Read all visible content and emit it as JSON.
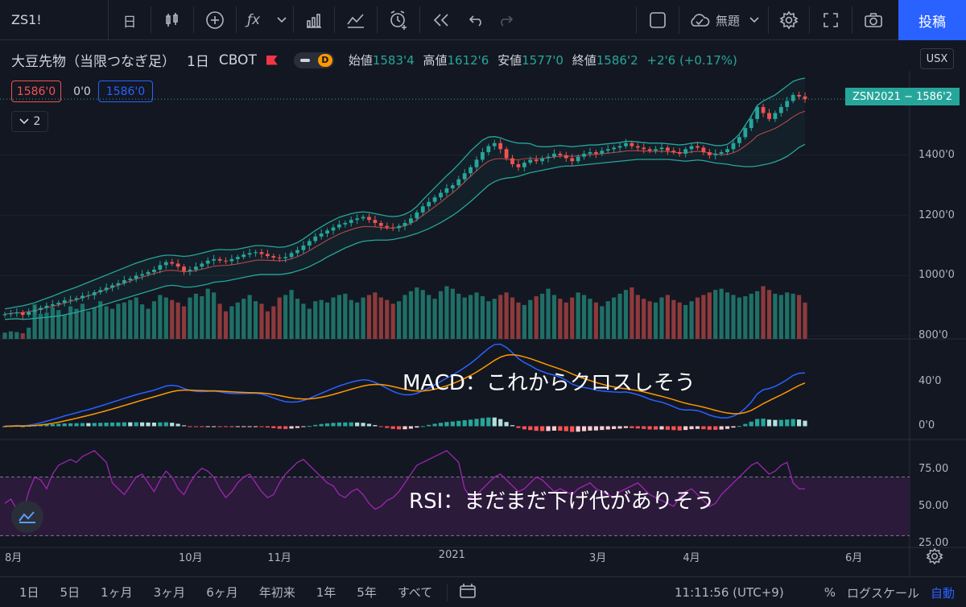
{
  "toolbar": {
    "symbol": "ZS1!",
    "interval": "日",
    "items": [
      "candle-icon",
      "plus-circle-icon",
      "function-icon",
      "chevron-down-icon",
      "bar-chart-icon",
      "compare-icon",
      "alarm-icon",
      "replay-icon",
      "undo-icon",
      "redo-icon",
      "layout-icon"
    ],
    "save_label": "無題",
    "post_label": "投稿"
  },
  "legend": {
    "title": "大豆先物（当限つなぎ足）",
    "interval": "1日",
    "exchange": "CBOT",
    "pill_letter": "D",
    "open_label": "始値",
    "open": "1583'4",
    "high_label": "高値",
    "high": "1612'6",
    "low_label": "安値",
    "low": "1577'0",
    "close_label": "終値",
    "close": "1586'2",
    "change": "+2'6 (+0.17%)"
  },
  "order": {
    "sell": "1586'0",
    "spread": "0'0",
    "buy": "1586'0"
  },
  "indicator_toggle": "2",
  "currency": "USX",
  "last_price_label": "ZSN2021 − 1586'2",
  "colors": {
    "up": "#26a69a",
    "down": "#ef5350",
    "bb": "#26a69a",
    "ma": "#ef5350",
    "macd": "#2962ff",
    "signal": "#ff9800",
    "rsi": "#9c27b0",
    "rsi_band": "#2b1a3a"
  },
  "chart_data": {
    "type": "line",
    "price_axis": [
      "1400'0",
      "1200'0",
      "1000'0",
      "800'0"
    ],
    "price_ticks": [
      1400,
      1200,
      1000,
      800
    ],
    "price_range": [
      790,
      1680
    ],
    "close": [
      872,
      875,
      878,
      870,
      880,
      886,
      893,
      900,
      905,
      910,
      918,
      920,
      925,
      933,
      935,
      945,
      952,
      960,
      968,
      975,
      985,
      990,
      1000,
      1005,
      1012,
      1020,
      1035,
      1045,
      1040,
      1030,
      1015,
      1020,
      1030,
      1040,
      1050,
      1055,
      1050,
      1048,
      1055,
      1062,
      1070,
      1075,
      1078,
      1072,
      1065,
      1060,
      1058,
      1062,
      1075,
      1085,
      1100,
      1115,
      1130,
      1140,
      1150,
      1160,
      1170,
      1175,
      1185,
      1190,
      1195,
      1185,
      1175,
      1165,
      1160,
      1158,
      1165,
      1175,
      1190,
      1210,
      1230,
      1245,
      1260,
      1275,
      1290,
      1300,
      1320,
      1340,
      1360,
      1385,
      1410,
      1430,
      1440,
      1420,
      1390,
      1370,
      1360,
      1375,
      1385,
      1380,
      1390,
      1395,
      1405,
      1400,
      1390,
      1380,
      1395,
      1405,
      1410,
      1405,
      1415,
      1420,
      1425,
      1430,
      1440,
      1430,
      1425,
      1420,
      1415,
      1420,
      1425,
      1415,
      1410,
      1405,
      1420,
      1430,
      1425,
      1410,
      1400,
      1405,
      1410,
      1420,
      1440,
      1460,
      1490,
      1520,
      1560,
      1540,
      1520,
      1540,
      1560,
      1580,
      1600,
      1595,
      1586
    ],
    "bb_upper": [
      890,
      893,
      897,
      900,
      905,
      910,
      918,
      925,
      932,
      940,
      948,
      955,
      962,
      970,
      978,
      986,
      994,
      1002,
      1010,
      1018,
      1026,
      1034,
      1042,
      1048,
      1055,
      1060,
      1065,
      1068,
      1068,
      1066,
      1064,
      1066,
      1070,
      1075,
      1080,
      1085,
      1087,
      1086,
      1086,
      1088,
      1092,
      1096,
      1100,
      1100,
      1098,
      1096,
      1094,
      1096,
      1102,
      1110,
      1122,
      1136,
      1150,
      1162,
      1174,
      1184,
      1194,
      1200,
      1206,
      1210,
      1212,
      1210,
      1206,
      1202,
      1198,
      1196,
      1198,
      1204,
      1214,
      1230,
      1252,
      1272,
      1292,
      1312,
      1332,
      1350,
      1370,
      1392,
      1414,
      1432,
      1450,
      1460,
      1462,
      1458,
      1450,
      1444,
      1440,
      1440,
      1438,
      1430,
      1428,
      1428,
      1430,
      1432,
      1430,
      1428,
      1430,
      1432,
      1434,
      1434,
      1436,
      1438,
      1440,
      1442,
      1446,
      1446,
      1444,
      1442,
      1440,
      1440,
      1440,
      1438,
      1436,
      1434,
      1436,
      1440,
      1442,
      1440,
      1436,
      1432,
      1432,
      1436,
      1450,
      1470,
      1500,
      1530,
      1565,
      1580,
      1590,
      1600,
      1615,
      1630,
      1645,
      1652,
      1656
    ],
    "bb_lower": [
      855,
      856,
      857,
      855,
      856,
      858,
      860,
      862,
      864,
      866,
      870,
      874,
      878,
      884,
      888,
      894,
      900,
      906,
      912,
      918,
      924,
      930,
      936,
      942,
      948,
      954,
      960,
      966,
      968,
      966,
      962,
      962,
      964,
      968,
      972,
      978,
      980,
      982,
      986,
      990,
      994,
      998,
      1002,
      1004,
      1004,
      1004,
      1004,
      1006,
      1010,
      1016,
      1022,
      1030,
      1040,
      1050,
      1062,
      1072,
      1082,
      1092,
      1100,
      1108,
      1114,
      1116,
      1118,
      1118,
      1118,
      1120,
      1124,
      1128,
      1134,
      1140,
      1148,
      1156,
      1166,
      1176,
      1188,
      1200,
      1214,
      1230,
      1246,
      1264,
      1282,
      1300,
      1312,
      1320,
      1324,
      1326,
      1330,
      1336,
      1342,
      1346,
      1350,
      1354,
      1358,
      1362,
      1364,
      1364,
      1366,
      1368,
      1370,
      1372,
      1374,
      1376,
      1378,
      1380,
      1382,
      1384,
      1386,
      1386,
      1386,
      1386,
      1386,
      1386,
      1384,
      1382,
      1380,
      1382,
      1384,
      1382,
      1378,
      1374,
      1372,
      1370,
      1366,
      1364,
      1362,
      1362,
      1364,
      1368,
      1372,
      1378,
      1386,
      1396,
      1410,
      1426,
      1436
    ],
    "volume": [
      0.1,
      0.12,
      0.11,
      0.09,
      0.18,
      0.55,
      0.4,
      0.42,
      0.5,
      0.46,
      0.38,
      0.52,
      0.48,
      0.56,
      0.44,
      0.5,
      0.6,
      0.52,
      0.48,
      0.56,
      0.58,
      0.62,
      0.66,
      0.55,
      0.48,
      0.6,
      0.7,
      0.66,
      0.62,
      0.58,
      0.52,
      0.66,
      0.72,
      0.68,
      0.8,
      0.74,
      0.56,
      0.44,
      0.52,
      0.58,
      0.64,
      0.7,
      0.6,
      0.56,
      0.44,
      0.52,
      0.66,
      0.7,
      0.78,
      0.64,
      0.56,
      0.48,
      0.6,
      0.62,
      0.58,
      0.66,
      0.7,
      0.72,
      0.62,
      0.58,
      0.66,
      0.7,
      0.74,
      0.66,
      0.62,
      0.56,
      0.6,
      0.7,
      0.76,
      0.82,
      0.78,
      0.7,
      0.64,
      0.76,
      0.84,
      0.8,
      0.72,
      0.66,
      0.7,
      0.74,
      0.68,
      0.6,
      0.64,
      0.7,
      0.74,
      0.66,
      0.58,
      0.54,
      0.62,
      0.68,
      0.72,
      0.8,
      0.7,
      0.64,
      0.58,
      0.66,
      0.74,
      0.7,
      0.64,
      0.58,
      0.52,
      0.6,
      0.66,
      0.72,
      0.78,
      0.82,
      0.7,
      0.64,
      0.6,
      0.58,
      0.66,
      0.7,
      0.62,
      0.58,
      0.54,
      0.6,
      0.66,
      0.7,
      0.74,
      0.78,
      0.8,
      0.74,
      0.7,
      0.66,
      0.68,
      0.72,
      0.76,
      0.84,
      0.78,
      0.72,
      0.7,
      0.74,
      0.72,
      0.7,
      0.58
    ],
    "macd_axis": [
      "40'0",
      "0'0"
    ],
    "macd_ticks": [
      40,
      0
    ],
    "macd_range": [
      -12,
      78
    ],
    "rsi_axis": [
      "75.00",
      "50.00",
      "25.00"
    ],
    "rsi_ticks": [
      75,
      50,
      25
    ],
    "rsi_range": [
      22,
      95
    ],
    "rsi": [
      52,
      55,
      48,
      45,
      60,
      70,
      68,
      62,
      72,
      78,
      80,
      82,
      80,
      84,
      86,
      88,
      84,
      80,
      66,
      62,
      58,
      64,
      70,
      72,
      66,
      60,
      68,
      74,
      70,
      62,
      58,
      66,
      72,
      76,
      74,
      70,
      62,
      56,
      60,
      66,
      70,
      72,
      66,
      60,
      56,
      58,
      66,
      72,
      76,
      80,
      82,
      78,
      74,
      70,
      66,
      64,
      58,
      56,
      60,
      62,
      58,
      52,
      48,
      50,
      54,
      56,
      60,
      66,
      72,
      78,
      80,
      82,
      84,
      86,
      88,
      84,
      80,
      62,
      56,
      58,
      62,
      66,
      70,
      72,
      68,
      64,
      60,
      62,
      66,
      70,
      68,
      64,
      60,
      62,
      60,
      58,
      62,
      64,
      66,
      62,
      60,
      58,
      56,
      60,
      62,
      64,
      66,
      62,
      58,
      56,
      54,
      52,
      50,
      56,
      60,
      62,
      58,
      54,
      50,
      52,
      58,
      62,
      66,
      70,
      74,
      78,
      80,
      76,
      72,
      74,
      78,
      80,
      66,
      62,
      62
    ],
    "x_labels": [
      "8月",
      "10月",
      "11月",
      "2021",
      "3月",
      "4月",
      "6月"
    ],
    "x_label_pos": [
      0.005,
      0.185,
      0.277,
      0.454,
      0.61,
      0.707,
      0.875
    ]
  },
  "annotations": {
    "macd": "MACD：これからクロスしそう",
    "rsi": "RSI：まだまだ下げ代がありそう"
  },
  "bottom": {
    "ranges": [
      "1日",
      "5日",
      "1ヶ月",
      "3ヶ月",
      "6ヶ月",
      "年初来",
      "1年",
      "5年",
      "すべて"
    ],
    "time": "11:11:56 (UTC+9)",
    "percent": "%",
    "log": "ログスケール",
    "auto": "自動"
  }
}
